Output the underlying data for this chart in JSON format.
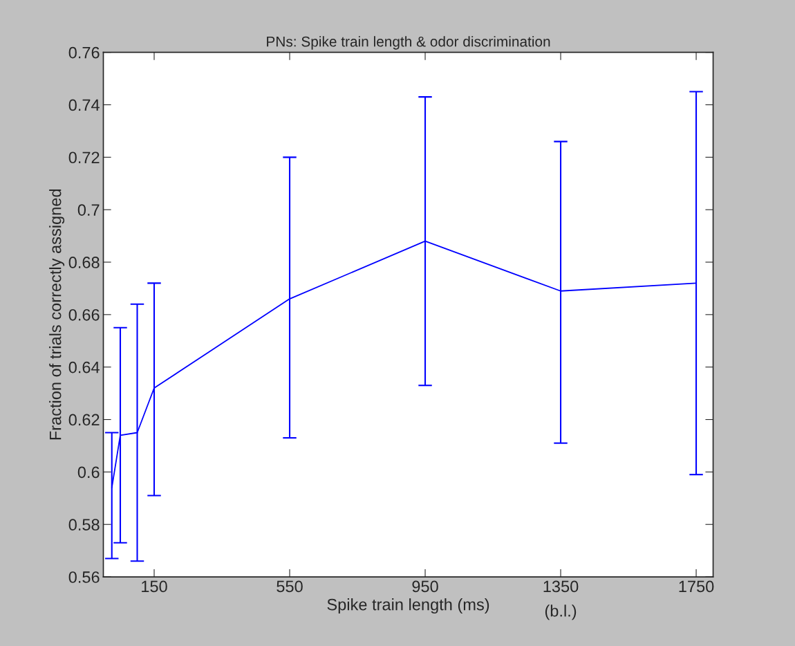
{
  "chart_data": {
    "type": "line",
    "title": "PNs: Spike train length & odor discrimination",
    "xlabel": "Spike train length (ms)",
    "ylabel": "Fraction of trials correctly assigned",
    "x": [
      25,
      50,
      100,
      150,
      550,
      950,
      1350,
      1750
    ],
    "series": [
      {
        "color": "#0000ff",
        "values": [
          0.594,
          0.614,
          0.615,
          0.632,
          0.666,
          0.688,
          0.669,
          0.672
        ],
        "errors": [
          [
            0.567,
            0.615
          ],
          [
            0.573,
            0.655
          ],
          [
            0.566,
            0.664
          ],
          [
            0.591,
            0.672
          ],
          [
            0.613,
            0.72
          ],
          [
            0.633,
            0.743
          ],
          [
            0.611,
            0.726
          ],
          [
            0.599,
            0.745
          ]
        ]
      }
    ],
    "xlim": [
      0,
      1800
    ],
    "xticks": [
      150,
      550,
      950,
      1350,
      1750
    ],
    "ylim": [
      0.56,
      0.76
    ],
    "yticks": [
      0.56,
      0.58,
      0.6,
      0.62,
      0.64,
      0.66,
      0.68,
      0.7,
      0.72,
      0.74,
      0.76
    ],
    "annotations": [
      "(b.l.)"
    ],
    "grid": false,
    "legend": false,
    "marker": "none",
    "line_style": "solid"
  }
}
